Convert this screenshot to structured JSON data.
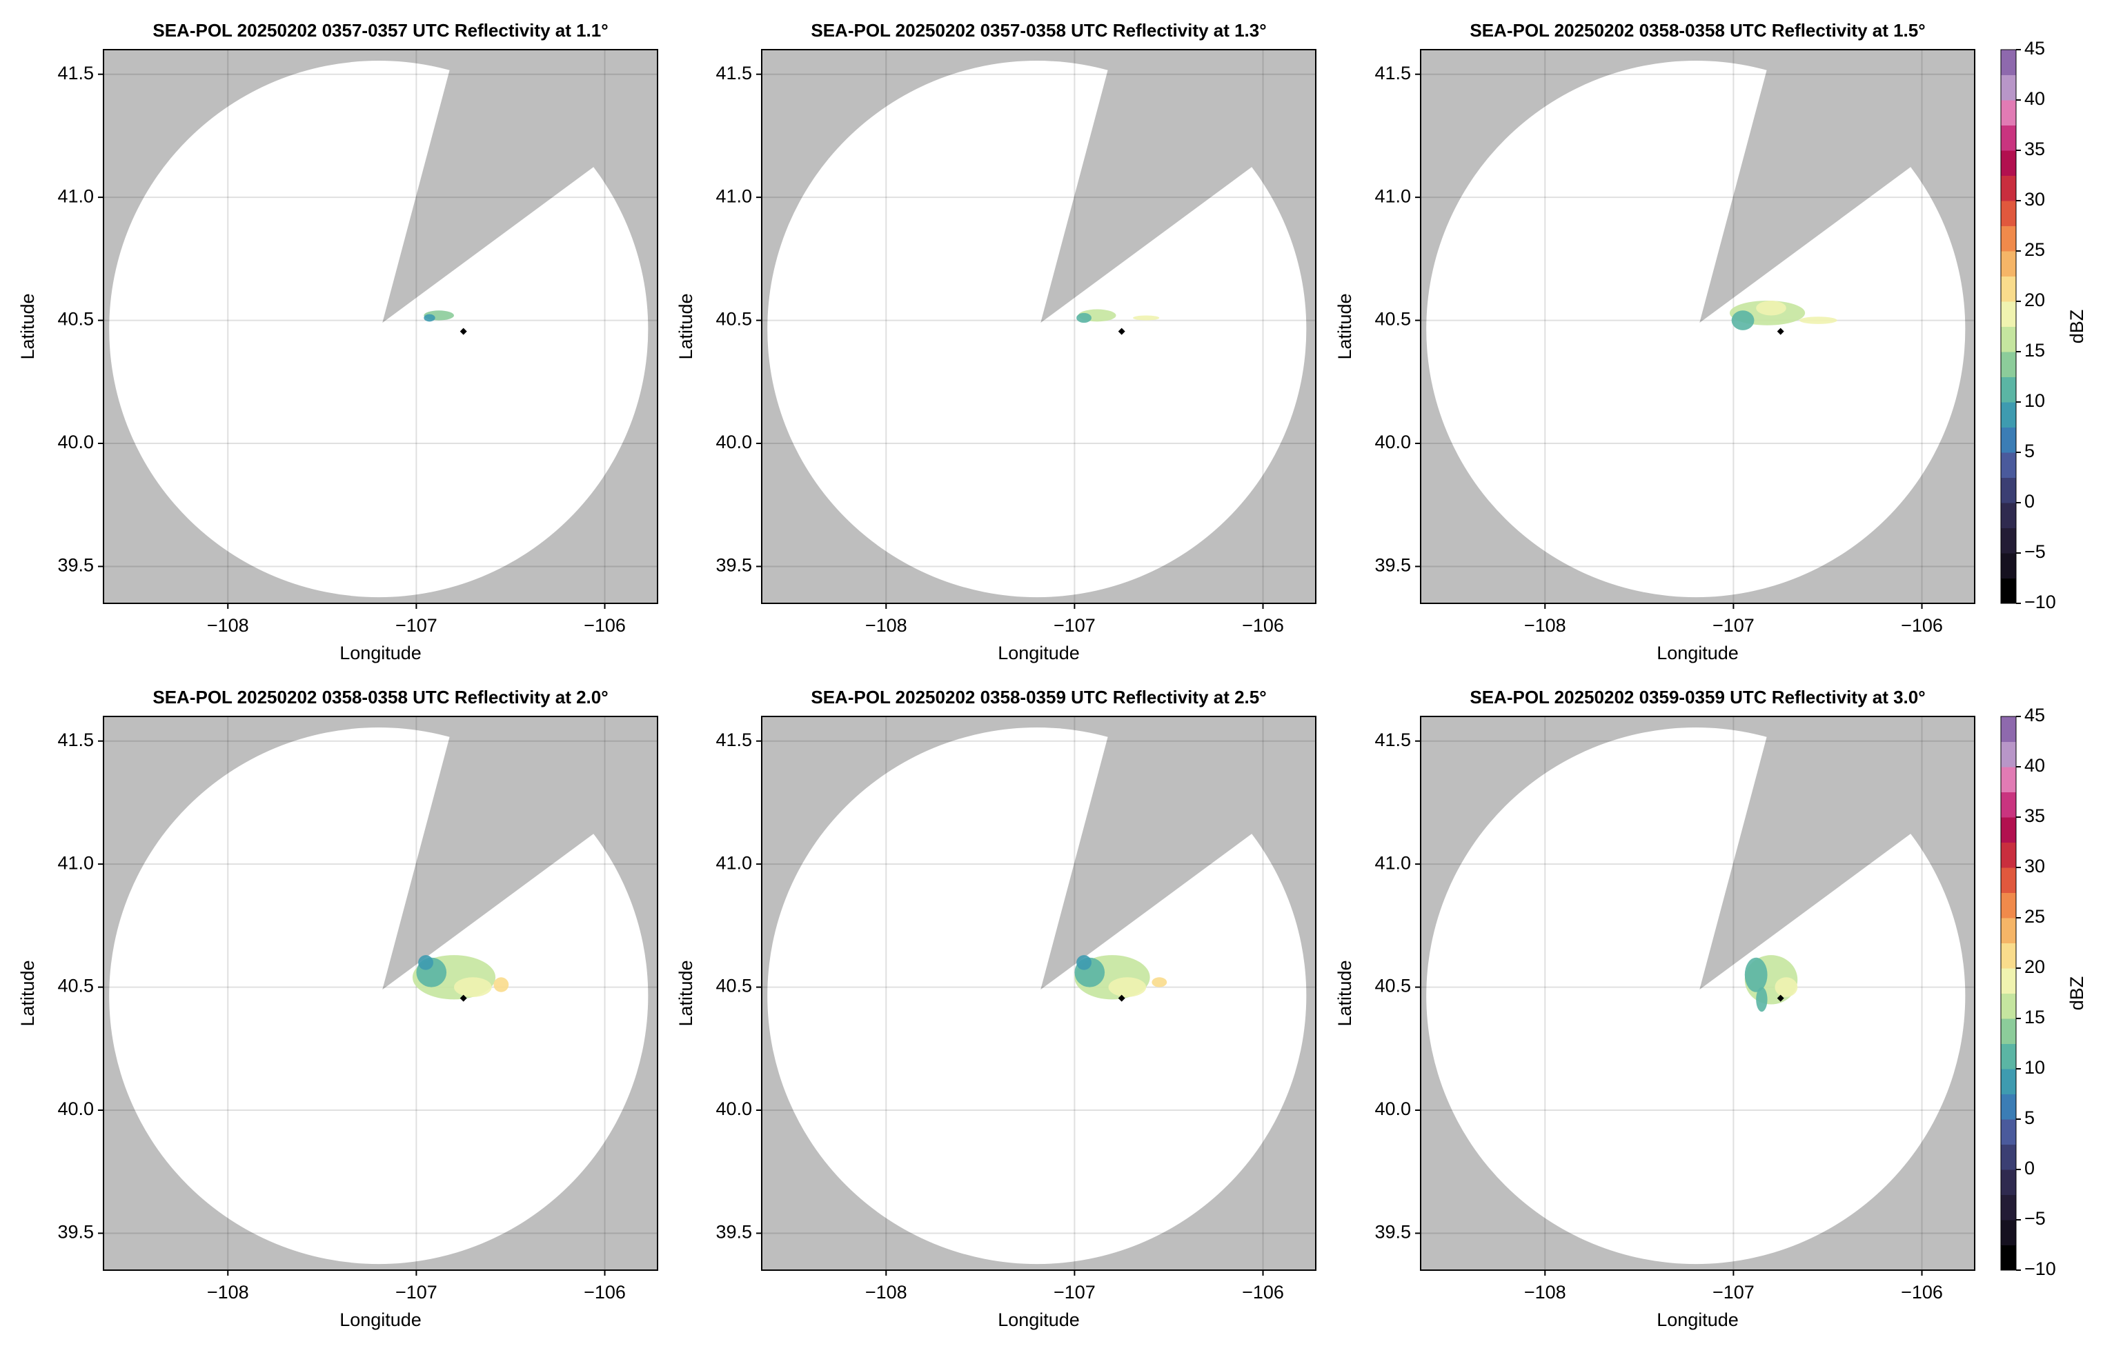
{
  "chart_data": [
    {
      "type": "radar",
      "title": "SEA-POL 20250202 0357-0357 UTC Reflectivity at 1.1°",
      "xlabel": "Longitude",
      "ylabel": "Latitude",
      "xlim": [
        -108.66,
        -105.72
      ],
      "ylim": [
        39.35,
        41.6
      ],
      "xticks": [
        {
          "value": -108,
          "label": "−108"
        },
        {
          "value": -107,
          "label": "−107"
        },
        {
          "value": -106,
          "label": "−106"
        }
      ],
      "yticks": [
        39.5,
        {
          "value": 40.0,
          "label": "40.0"
        },
        40.5,
        {
          "value": 41.0,
          "label": "41.0"
        },
        41.5
      ],
      "grid": true
    },
    {
      "type": "radar",
      "title": "SEA-POL 20250202 0357-0358 UTC Reflectivity at 1.3°",
      "xlabel": "Longitude",
      "ylabel": "Latitude",
      "xlim": [
        -108.66,
        -105.72
      ],
      "ylim": [
        39.35,
        41.6
      ],
      "xticks": [
        {
          "value": -108,
          "label": "−108"
        },
        {
          "value": -107,
          "label": "−107"
        },
        {
          "value": -106,
          "label": "−106"
        }
      ],
      "yticks": [
        39.5,
        {
          "value": 40.0,
          "label": "40.0"
        },
        40.5,
        {
          "value": 41.0,
          "label": "41.0"
        },
        41.5
      ],
      "grid": true
    },
    {
      "type": "radar",
      "title": "SEA-POL 20250202 0358-0358 UTC Reflectivity at 1.5°",
      "xlabel": "Longitude",
      "ylabel": "Latitude",
      "xlim": [
        -108.66,
        -105.72
      ],
      "ylim": [
        39.35,
        41.6
      ],
      "xticks": [
        {
          "value": -108,
          "label": "−108"
        },
        {
          "value": -107,
          "label": "−107"
        },
        {
          "value": -106,
          "label": "−106"
        }
      ],
      "yticks": [
        39.5,
        {
          "value": 40.0,
          "label": "40.0"
        },
        40.5,
        {
          "value": 41.0,
          "label": "41.0"
        },
        41.5
      ],
      "grid": true,
      "colorbar": {
        "label": "dBZ",
        "lim": [
          -10,
          45
        ],
        "ticks": [
          {
            "value": -10,
            "label": "−10"
          },
          {
            "value": -5,
            "label": "−5"
          },
          0,
          5,
          10,
          15,
          20,
          25,
          30,
          35,
          40,
          45
        ],
        "colors": [
          "#000000",
          "#15101f",
          "#231c35",
          "#2f2a4f",
          "#3b3f73",
          "#4a5a9c",
          "#3b7db5",
          "#3e9bb0",
          "#5bb5a4",
          "#8ccc9a",
          "#c5e59f",
          "#f0f3b0",
          "#f9dc8c",
          "#f5b567",
          "#f08a4b",
          "#e0583d",
          "#c92e3e",
          "#b2104f",
          "#c9347f",
          "#e17bb4",
          "#b896c8",
          "#8e69ad"
        ]
      }
    },
    {
      "type": "radar",
      "title": "SEA-POL 20250202 0358-0358 UTC Reflectivity at 2.0°",
      "xlabel": "Longitude",
      "ylabel": "Latitude",
      "xlim": [
        -108.66,
        -105.72
      ],
      "ylim": [
        39.35,
        41.6
      ],
      "xticks": [
        {
          "value": -108,
          "label": "−108"
        },
        {
          "value": -107,
          "label": "−107"
        },
        {
          "value": -106,
          "label": "−106"
        }
      ],
      "yticks": [
        39.5,
        {
          "value": 40.0,
          "label": "40.0"
        },
        40.5,
        {
          "value": 41.0,
          "label": "41.0"
        },
        41.5
      ],
      "grid": true
    },
    {
      "type": "radar",
      "title": "SEA-POL 20250202 0358-0359 UTC Reflectivity at 2.5°",
      "xlabel": "Longitude",
      "ylabel": "Latitude",
      "xlim": [
        -108.66,
        -105.72
      ],
      "ylim": [
        39.35,
        41.6
      ],
      "xticks": [
        {
          "value": -108,
          "label": "−108"
        },
        {
          "value": -107,
          "label": "−107"
        },
        {
          "value": -106,
          "label": "−106"
        }
      ],
      "yticks": [
        39.5,
        {
          "value": 40.0,
          "label": "40.0"
        },
        40.5,
        {
          "value": 41.0,
          "label": "41.0"
        },
        41.5
      ],
      "grid": true
    },
    {
      "type": "radar",
      "title": "SEA-POL 20250202 0359-0359 UTC Reflectivity at 3.0°",
      "xlabel": "Longitude",
      "ylabel": "Latitude",
      "xlim": [
        -108.66,
        -105.72
      ],
      "ylim": [
        39.35,
        41.6
      ],
      "xticks": [
        {
          "value": -108,
          "label": "−108"
        },
        {
          "value": -107,
          "label": "−107"
        },
        {
          "value": -106,
          "label": "−106"
        }
      ],
      "yticks": [
        39.5,
        {
          "value": 40.0,
          "label": "40.0"
        },
        40.5,
        {
          "value": 41.0,
          "label": "41.0"
        },
        41.5
      ],
      "grid": true,
      "colorbar": {
        "label": "dBZ",
        "lim": [
          -10,
          45
        ],
        "ticks": [
          {
            "value": -10,
            "label": "−10"
          },
          {
            "value": -5,
            "label": "−5"
          },
          0,
          5,
          10,
          15,
          20,
          25,
          30,
          35,
          40,
          45
        ],
        "colors": [
          "#000000",
          "#15101f",
          "#231c35",
          "#2f2a4f",
          "#3b3f73",
          "#4a5a9c",
          "#3b7db5",
          "#3e9bb0",
          "#5bb5a4",
          "#8ccc9a",
          "#c5e59f",
          "#f0f3b0",
          "#f9dc8c",
          "#f5b567",
          "#f08a4b",
          "#e0583d",
          "#c92e3e",
          "#b2104f",
          "#c9347f",
          "#e17bb4",
          "#b896c8",
          "#8e69ad"
        ]
      }
    }
  ]
}
